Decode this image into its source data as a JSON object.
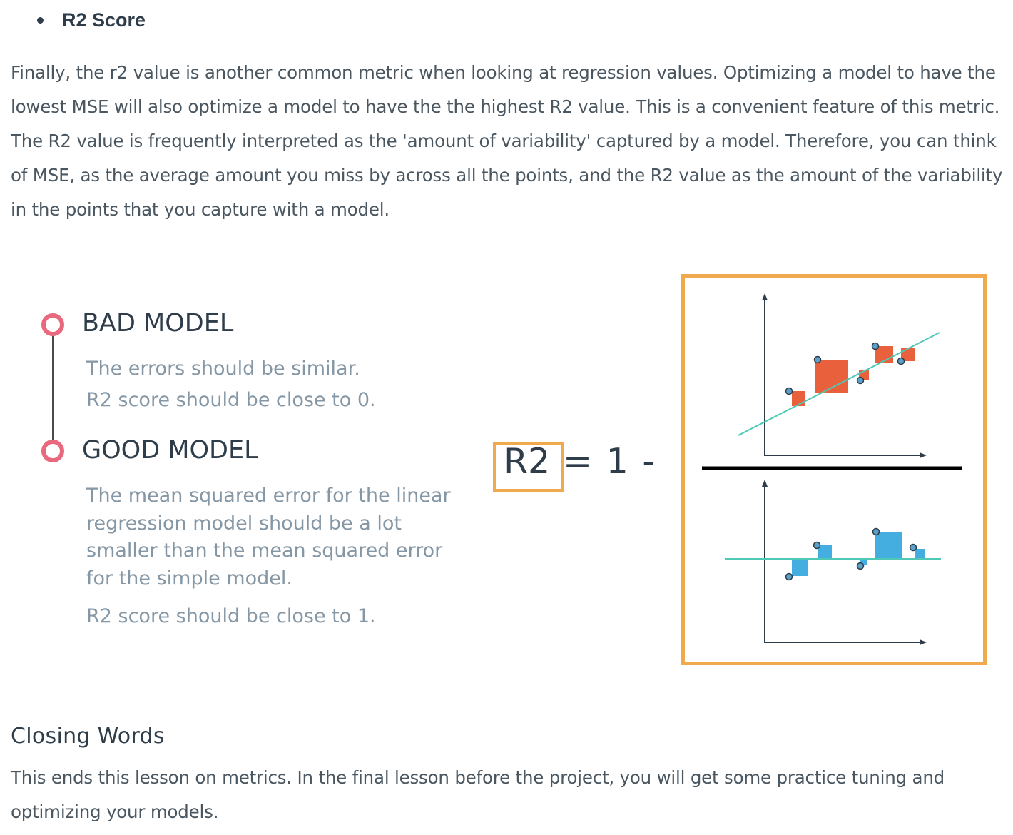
{
  "bullet": {
    "label": "R2 Score"
  },
  "intro": {
    "text": "Finally, the r2 value is another common metric when looking at regression values. Optimizing a model to have the lowest MSE will also optimize a model to have the the highest R2 value. This is a convenient feature of this metric. The R2 value is frequently interpreted as the 'amount of variability' captured by a model. Therefore, you can think of MSE, as the average amount you miss by across all the points, and the R2 value as the amount of the variability in the points that you capture with a model."
  },
  "figure": {
    "bad_model": {
      "heading": "BAD MODEL",
      "line1": "The errors should be similar.",
      "line2": "R2 score should be close to 0."
    },
    "good_model": {
      "heading": "GOOD MODEL",
      "description": "The mean squared error for the linear regression model should be a lot smaller than the mean squared error for the simple model.",
      "r2_note": "R2 score should be close to 1."
    },
    "formula": {
      "lhs": "R2",
      "rhs": "= 1 -"
    },
    "colors": {
      "timeline_ring": "#e8697d",
      "highlight_box": "#f0a94c",
      "numerator_squares": "#e8603c",
      "denominator_squares": "#44aee0",
      "fit_line": "#4fc9b5",
      "point_fill": "#5aa0c8"
    }
  },
  "closing": {
    "heading": "Closing Words",
    "text": "This ends this lesson on metrics. In the final lesson before the project, you will get some practice tuning and optimizing your models."
  }
}
